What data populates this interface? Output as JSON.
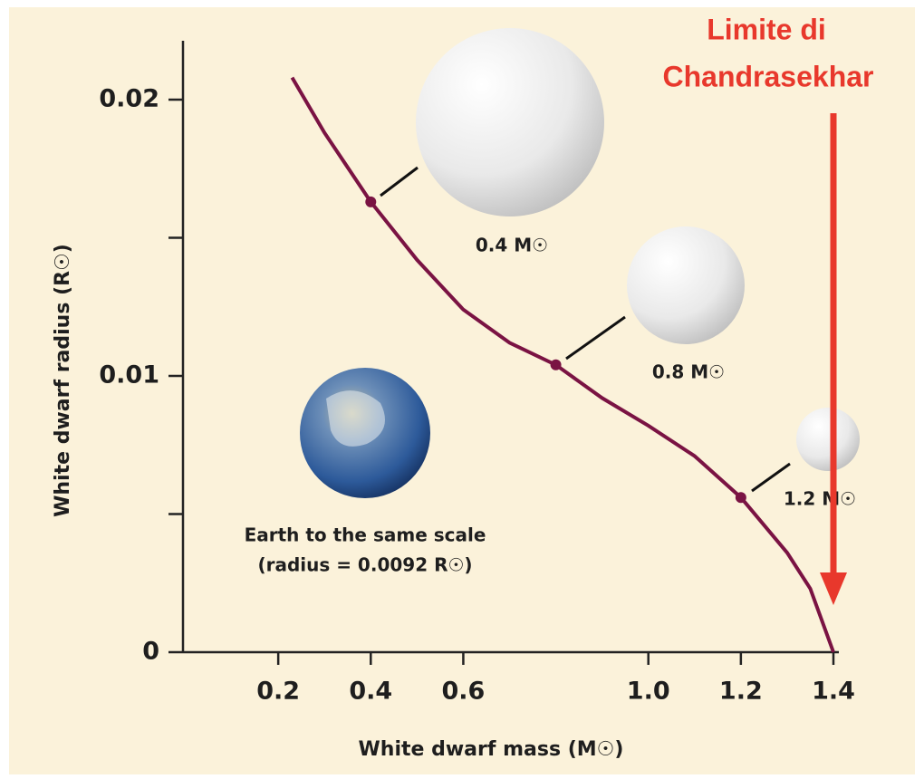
{
  "chart_data": {
    "type": "line",
    "x": [
      0.23,
      0.3,
      0.4,
      0.5,
      0.6,
      0.7,
      0.8,
      0.9,
      1.0,
      1.1,
      1.2,
      1.3,
      1.35,
      1.4
    ],
    "values": [
      0.0208,
      0.0188,
      0.0163,
      0.0142,
      0.0124,
      0.0112,
      0.0104,
      0.0092,
      0.0082,
      0.0071,
      0.0056,
      0.0036,
      0.0023,
      0
    ],
    "color": "#7a1343",
    "xlim": [
      0,
      1.4
    ],
    "xticks": [
      0.2,
      0.4,
      0.6,
      {
        "value": 1,
        "label": "1.0"
      },
      1.2,
      1.4
    ],
    "ylim": [
      0,
      0.022
    ],
    "yticks": [
      0,
      0.01,
      0.02
    ],
    "yminor_ticks": [
      0.005,
      0.015
    ],
    "xlabel": "White dwarf mass (M☉)",
    "ylabel": "White dwarf radius (R☉)",
    "annotations": [
      {
        "text": "0.4 M☉",
        "x": 0.4
      },
      {
        "text": "0.8 M☉",
        "x": 0.8
      },
      {
        "text": "1.2 M☉",
        "x": 1.2
      }
    ],
    "limit": {
      "lines": [
        "Limite di",
        "Chandrasekhar"
      ],
      "x": 1.4,
      "color": "#e8382c"
    },
    "earth_label": [
      "Earth to the same scale",
      "(radius = 0.0092 R☉)"
    ]
  }
}
